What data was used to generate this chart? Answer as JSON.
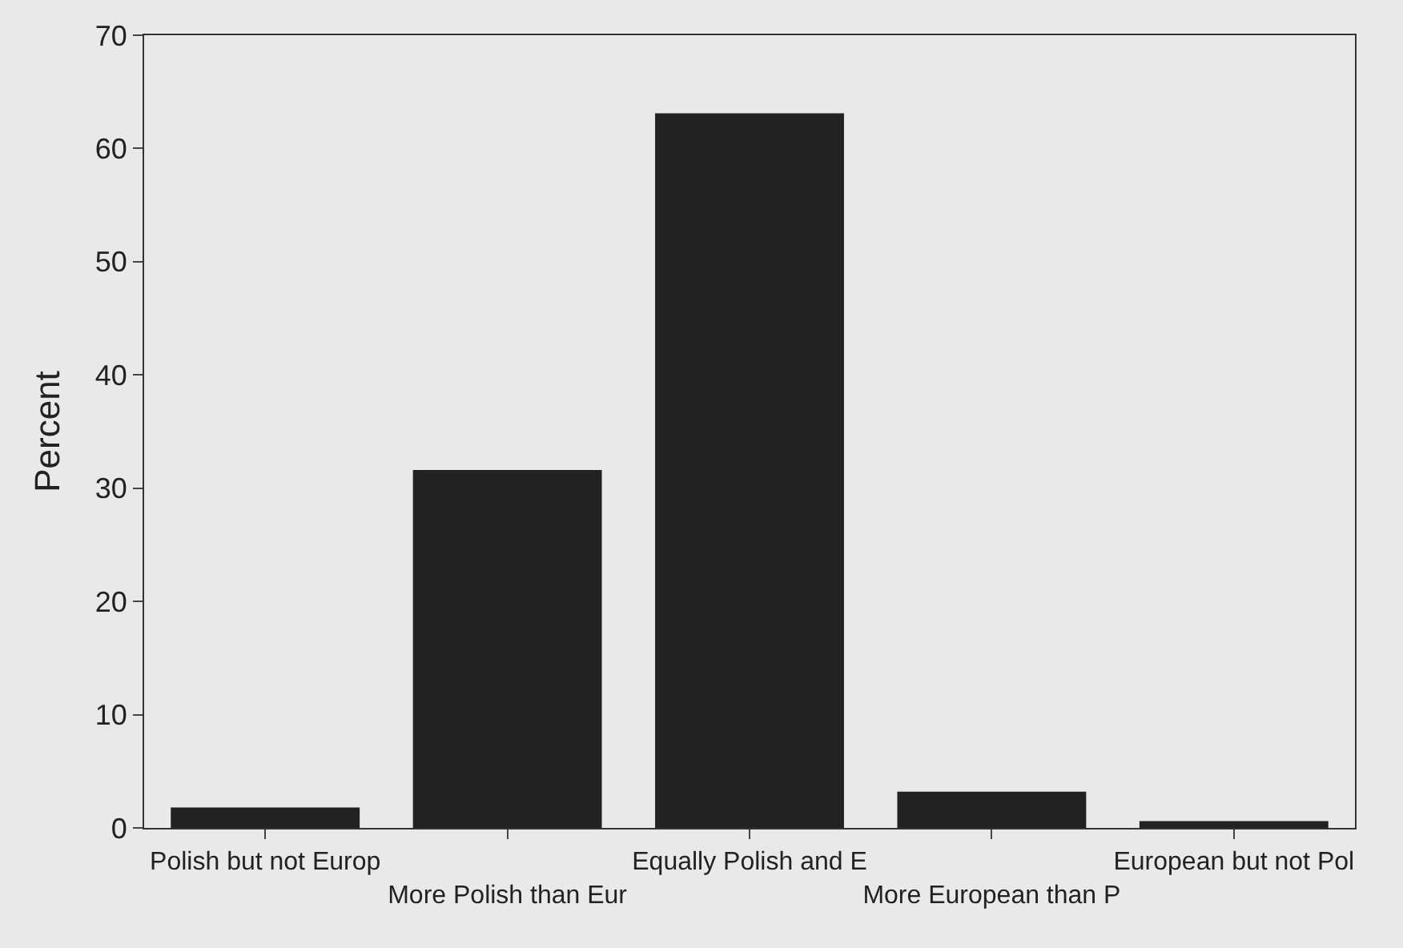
{
  "chart_data": {
    "type": "bar",
    "ylabel": "Percent",
    "categories": [
      "Polish but not Europ",
      "More Polish than Eur",
      "Equally Polish and E",
      "More European than P",
      "European but not Pol"
    ],
    "values": [
      1.8,
      31.6,
      63.1,
      3.2,
      0.6
    ],
    "color": "#222222",
    "ylim": [
      0,
      70
    ],
    "yticks": [
      0,
      10,
      20,
      30,
      40,
      50,
      60,
      70
    ],
    "grid": false
  }
}
